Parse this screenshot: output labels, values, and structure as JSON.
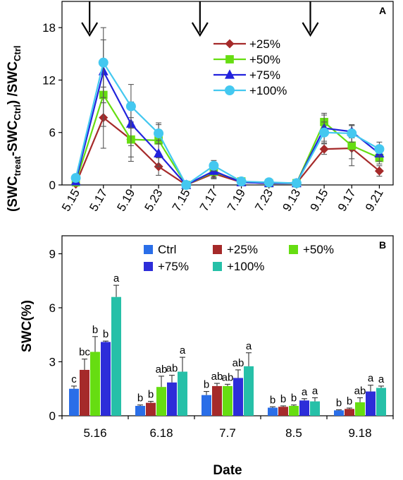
{
  "chart_data": [
    {
      "panel": "A",
      "type": "line",
      "ylabel_parts": [
        "(SWC",
        "treat",
        "-SWC",
        "Ctrl",
        ") /SWC",
        "Ctrl"
      ],
      "categories": [
        "5.15",
        "5.17",
        "5.19",
        "5.23",
        "7.15",
        "7.17",
        "7.19",
        "7.23",
        "9.13",
        "9.15",
        "9.17",
        "9.21"
      ],
      "yticks": [
        "0",
        "6",
        "12",
        "18"
      ],
      "ylim": [
        0,
        21
      ],
      "arrows_at_x": [
        0,
        4,
        8
      ],
      "legend_position": "top-right",
      "series": [
        {
          "name": "+25%",
          "color": "#a52a2a",
          "marker": "diamond",
          "values": [
            0.1,
            7.7,
            5.2,
            2.1,
            0.0,
            1.3,
            0.3,
            0.2,
            0.2,
            4.1,
            4.2,
            1.6
          ],
          "err": [
            0.2,
            3.5,
            2.0,
            1.0,
            0.1,
            0.6,
            0.3,
            0.2,
            0.2,
            0.6,
            1.2,
            0.6
          ]
        },
        {
          "name": "+50%",
          "color": "#66dd11",
          "marker": "square",
          "values": [
            0.3,
            10.3,
            5.2,
            5.1,
            0.0,
            1.5,
            0.4,
            0.2,
            0.2,
            7.2,
            4.5,
            3.1
          ],
          "err": [
            0.2,
            3.6,
            2.5,
            1.8,
            0.1,
            0.6,
            0.3,
            0.2,
            0.2,
            1.0,
            2.3,
            0.7
          ]
        },
        {
          "name": "+75%",
          "color": "#2222dd",
          "marker": "triangle",
          "values": [
            0.4,
            13.0,
            7.0,
            3.6,
            0.0,
            1.6,
            0.3,
            0.2,
            0.2,
            6.5,
            6.1,
            3.6
          ],
          "err": [
            0.2,
            3.6,
            2.5,
            1.5,
            0.1,
            0.8,
            0.3,
            0.2,
            0.2,
            1.5,
            0.7,
            0.9
          ]
        },
        {
          "name": "+100%",
          "color": "#44c8f0",
          "marker": "circle",
          "values": [
            0.8,
            14.0,
            9.0,
            5.9,
            0.0,
            2.2,
            0.4,
            0.3,
            0.2,
            6.0,
            5.9,
            4.1
          ],
          "err": [
            0.3,
            4.0,
            2.5,
            1.2,
            0.1,
            0.6,
            0.2,
            0.2,
            0.2,
            1.2,
            1.0,
            0.8
          ]
        }
      ]
    },
    {
      "panel": "B",
      "type": "bar",
      "ylabel": "SWC(%)",
      "xlabel": "Date",
      "categories": [
        "5.16",
        "6.18",
        "7.7",
        "8.5",
        "9.18"
      ],
      "yticks": [
        "0",
        "3",
        "6",
        "9"
      ],
      "ylim": [
        0,
        10
      ],
      "legend_position": "top",
      "series": [
        {
          "name": "Ctrl",
          "color": "#2a6ee8",
          "values": [
            1.5,
            0.55,
            1.15,
            0.45,
            0.3
          ],
          "err": [
            0.15,
            0.05,
            0.2,
            0.05,
            0.03
          ],
          "labels": [
            "c",
            "b",
            "b",
            "b",
            "b"
          ]
        },
        {
          "name": "+25%",
          "color": "#a52a2a",
          "values": [
            2.55,
            0.72,
            1.65,
            0.5,
            0.38
          ],
          "err": [
            0.6,
            0.08,
            0.15,
            0.05,
            0.05
          ],
          "labels": [
            "bc",
            "b",
            "ab",
            "b",
            "b"
          ]
        },
        {
          "name": "+50%",
          "color": "#66dd11",
          "values": [
            3.55,
            1.6,
            1.65,
            0.55,
            0.75
          ],
          "err": [
            0.85,
            0.6,
            0.1,
            0.05,
            0.25
          ],
          "labels": [
            "b",
            "ab",
            "ab",
            "b",
            "ab"
          ]
        },
        {
          "name": "+75%",
          "color": "#2d2dd9",
          "values": [
            4.1,
            1.85,
            2.1,
            0.85,
            1.35
          ],
          "err": [
            0.05,
            0.4,
            0.45,
            0.1,
            0.35
          ],
          "labels": [
            "b",
            "ab",
            "ab",
            "a",
            "a"
          ]
        },
        {
          "name": "+100%",
          "color": "#26c0a8",
          "values": [
            6.6,
            2.45,
            2.75,
            0.8,
            1.55
          ],
          "err": [
            0.65,
            0.8,
            0.75,
            0.2,
            0.1
          ],
          "labels": [
            "a",
            "a",
            "a",
            "a",
            "a"
          ]
        }
      ]
    }
  ]
}
